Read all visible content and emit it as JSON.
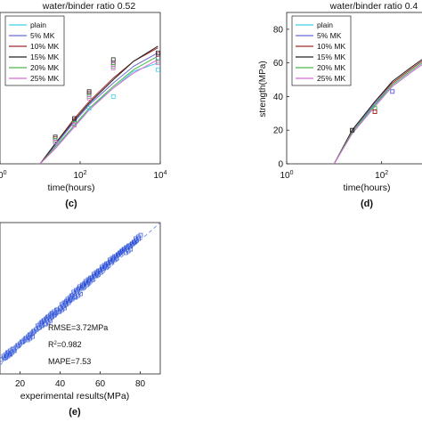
{
  "chart_data": [
    {
      "id": "c",
      "type": "line",
      "title": "water/binder ratio 0.52",
      "xlabel": "time(hours)",
      "ylabel": "",
      "x_scale": "log",
      "xlim": [
        1,
        10000
      ],
      "ylim": [
        0,
        90
      ],
      "x_tick_labels": [
        {
          "value": 1,
          "base": "10",
          "exp": "0"
        },
        {
          "value": 100,
          "base": "10",
          "exp": "2"
        },
        {
          "value": 10000,
          "base": "10",
          "exp": "4"
        }
      ],
      "legend": "top-left",
      "panel_label": "(c)",
      "series": [
        {
          "name": "plain",
          "color": "#3fd0e6",
          "x": [
            10,
            24,
            72,
            168,
            672,
            2160,
            8760
          ],
          "y": [
            0,
            10,
            22,
            33,
            45,
            55,
            60
          ],
          "marker_x": [
            24,
            72,
            168,
            672,
            8760
          ],
          "marker_y": [
            13,
            24,
            33,
            40,
            56
          ]
        },
        {
          "name": "5% MK",
          "color": "#6a6ad8",
          "x": [
            10,
            24,
            72,
            168,
            672,
            2160,
            8760
          ],
          "y": [
            0,
            11,
            25,
            35,
            48,
            58,
            66
          ],
          "marker_x": [
            24,
            72,
            168,
            672,
            8760
          ],
          "marker_y": [
            14,
            25,
            41,
            59,
            63
          ]
        },
        {
          "name": "10% MK",
          "color": "#a02a2a",
          "x": [
            10,
            24,
            72,
            168,
            672,
            2160,
            8760
          ],
          "y": [
            0,
            12,
            27,
            37,
            51,
            61,
            69
          ],
          "marker_x": [
            24,
            72,
            168,
            672,
            8760
          ],
          "marker_y": [
            15,
            26,
            42,
            60,
            65
          ]
        },
        {
          "name": "15% MK",
          "color": "#222222",
          "x": [
            10,
            24,
            72,
            168,
            672,
            2160,
            8760
          ],
          "y": [
            0,
            12,
            26,
            36,
            50,
            61,
            70
          ],
          "marker_x": [
            24,
            72,
            168,
            672,
            8760
          ],
          "marker_y": [
            16,
            27,
            43,
            62,
            66
          ]
        },
        {
          "name": "20% MK",
          "color": "#4ab84a",
          "x": [
            10,
            24,
            72,
            168,
            672,
            2160,
            8760
          ],
          "y": [
            0,
            10,
            23,
            33,
            46,
            56,
            64
          ],
          "marker_x": [
            24,
            72,
            168,
            672,
            8760
          ],
          "marker_y": [
            14,
            24,
            40,
            58,
            61
          ]
        },
        {
          "name": "25% MK",
          "color": "#d86ad8",
          "x": [
            10,
            24,
            72,
            168,
            672,
            2160,
            8760
          ],
          "y": [
            0,
            9,
            22,
            32,
            45,
            54,
            62
          ],
          "marker_x": [
            24,
            72,
            168,
            672,
            8760
          ],
          "marker_y": [
            13,
            23,
            39,
            57,
            60
          ]
        }
      ]
    },
    {
      "id": "d",
      "type": "line",
      "title": "water/binder ratio 0.4",
      "xlabel": "time(hours)",
      "ylabel": "strength(MPa)",
      "x_scale": "log",
      "xlim": [
        1,
        1000
      ],
      "ylim": [
        0,
        90
      ],
      "y_ticks": [
        0,
        20,
        40,
        60,
        80
      ],
      "x_tick_labels": [
        {
          "value": 1,
          "base": "10",
          "exp": "0"
        },
        {
          "value": 100,
          "base": "10",
          "exp": "2"
        }
      ],
      "legend": "top-left",
      "panel_label": "(d)",
      "series": [
        {
          "name": "plain",
          "color": "#3fd0e6",
          "x": [
            10,
            24,
            72,
            168,
            400,
            1000
          ],
          "y": [
            0,
            18,
            35,
            46,
            54,
            62
          ]
        },
        {
          "name": "5% MK",
          "color": "#6a6ad8",
          "x": [
            10,
            24,
            72,
            168,
            400,
            1000
          ],
          "y": [
            0,
            19,
            36,
            47,
            55,
            63
          ]
        },
        {
          "name": "10% MK",
          "color": "#a02a2a",
          "x": [
            10,
            24,
            72,
            168,
            400,
            1000
          ],
          "y": [
            0,
            20,
            37,
            48,
            56,
            64
          ]
        },
        {
          "name": "15% MK",
          "color": "#222222",
          "x": [
            10,
            24,
            72,
            168,
            400,
            1000
          ],
          "y": [
            0,
            20,
            37,
            49,
            57,
            65
          ]
        },
        {
          "name": "20% MK",
          "color": "#4ab84a",
          "x": [
            10,
            24,
            72,
            168,
            400,
            1000
          ],
          "y": [
            0,
            19,
            35,
            47,
            55,
            63
          ]
        },
        {
          "name": "25% MK",
          "color": "#d86ad8",
          "x": [
            10,
            24,
            72,
            168,
            400,
            1000
          ],
          "y": [
            0,
            18,
            34,
            46,
            54,
            62
          ]
        }
      ],
      "markers": [
        {
          "x": 24,
          "y": 20,
          "color": "#222222"
        },
        {
          "x": 72,
          "y": 33,
          "color": "#4ab84a"
        },
        {
          "x": 72,
          "y": 31,
          "color": "#a02a2a"
        },
        {
          "x": 168,
          "y": 43,
          "color": "#6a6ad8"
        }
      ]
    },
    {
      "id": "e",
      "type": "scatter",
      "xlabel": "experimental results(MPa)",
      "ylabel": "",
      "xlim": [
        10,
        90
      ],
      "ylim": [
        5,
        90
      ],
      "x_ticks": [
        20,
        40,
        60,
        80
      ],
      "panel_label": "(e)",
      "stats": {
        "rmse": "RMSE=3.72MPa",
        "r2_prefix": "R",
        "r2_sup": "2",
        "r2_value": "=0.982",
        "mape": "MAPE=7.53"
      },
      "marker_color": "#2a4fd6",
      "reference_line": {
        "x": [
          10,
          90
        ],
        "y": [
          10,
          90
        ]
      },
      "x": [
        12,
        13,
        14,
        15,
        16,
        18,
        20,
        22,
        24,
        25,
        26,
        28,
        30,
        31,
        32,
        33,
        34,
        35,
        36,
        37,
        38,
        40,
        41,
        42,
        43,
        44,
        45,
        46,
        47,
        48,
        49,
        50,
        51,
        52,
        53,
        54,
        55,
        56,
        57,
        58,
        59,
        60,
        61,
        62,
        63,
        64,
        65,
        66,
        67,
        68,
        69,
        70,
        71,
        72,
        73,
        74,
        75,
        76,
        77,
        78,
        79
      ],
      "y": [
        14,
        16,
        15,
        18,
        17,
        20,
        22,
        24,
        26,
        25,
        28,
        30,
        33,
        32,
        35,
        36,
        34,
        38,
        37,
        40,
        39,
        42,
        41,
        45,
        44,
        46,
        48,
        47,
        50,
        52,
        49,
        53,
        55,
        54,
        56,
        58,
        57,
        59,
        60,
        62,
        61,
        63,
        64,
        66,
        65,
        67,
        68,
        70,
        69,
        71,
        72,
        73,
        74,
        75,
        76,
        74,
        77,
        78,
        79,
        80,
        82
      ]
    }
  ]
}
